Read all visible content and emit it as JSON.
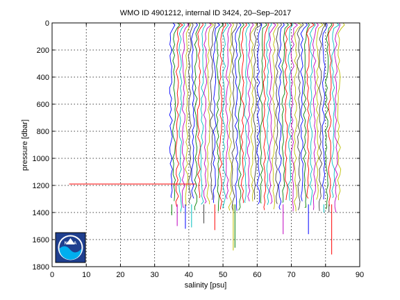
{
  "chart_data": {
    "type": "line",
    "title": "WMO ID 4901212, internal ID 3424, 20–Sep–2017",
    "xlabel": "salinity [psu]",
    "ylabel": "pressure [dbar]",
    "xlim": [
      0,
      90
    ],
    "ylim": [
      1800,
      0
    ],
    "y_reversed": true,
    "grid": true,
    "xticks": [
      "0",
      "10",
      "20",
      "30",
      "40",
      "50",
      "60",
      "70",
      "80",
      "90"
    ],
    "yticks": [
      "0",
      "200",
      "400",
      "600",
      "800",
      "1000",
      "1200",
      "1400",
      "1600",
      "1800"
    ],
    "profile_x_start": 34.8,
    "profile_x_end": 84.0,
    "profile_count": 55,
    "profile_depth_range": [
      1290,
      1400
    ],
    "deep_spikes": [
      {
        "x": 35.0,
        "y": 1420
      },
      {
        "x": 36.6,
        "y": 1500
      },
      {
        "x": 39.0,
        "y": 1520
      },
      {
        "x": 40.8,
        "y": 1510
      },
      {
        "x": 44.4,
        "y": 1480
      },
      {
        "x": 47.6,
        "y": 1530
      },
      {
        "x": 53.0,
        "y": 1680
      },
      {
        "x": 53.5,
        "y": 1660
      },
      {
        "x": 67.6,
        "y": 1560
      },
      {
        "x": 75.0,
        "y": 1560
      },
      {
        "x": 79.5,
        "y": 1400
      },
      {
        "x": 81.0,
        "y": 1400
      },
      {
        "x": 81.8,
        "y": 1710
      }
    ],
    "outlier_segment": {
      "x_start": 5.0,
      "x_end": 42.0,
      "y": 1190
    },
    "series_colors": [
      "#0000ff",
      "#008000",
      "#ff0000",
      "#00bfbf",
      "#bf00bf",
      "#bfbf00",
      "#404040"
    ],
    "logo": {
      "text": "NOAA",
      "icon": "noaa-logo-icon",
      "colors": [
        "#1f3f8f",
        "#00aeef",
        "#ffffff"
      ]
    }
  }
}
